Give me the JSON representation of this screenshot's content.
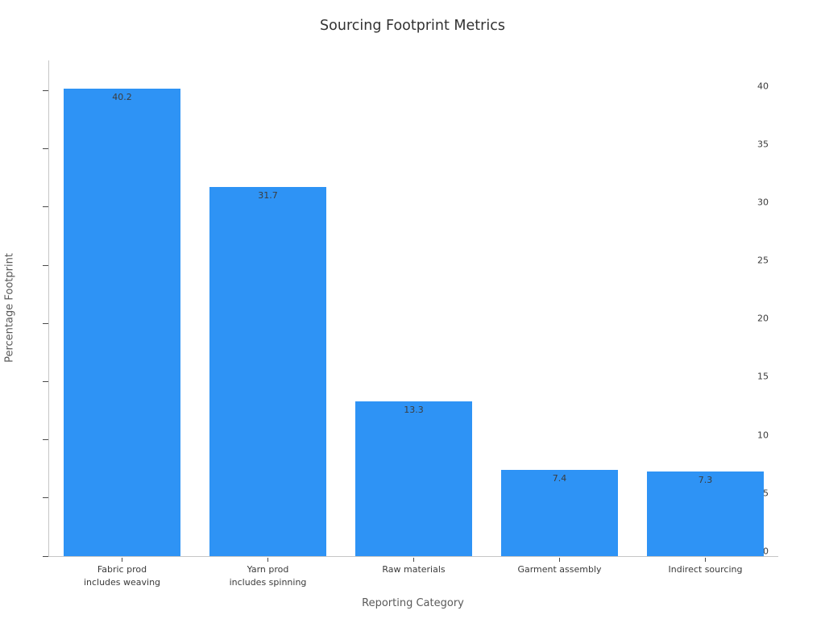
{
  "chart_data": {
    "type": "bar",
    "title": "Sourcing Footprint Metrics",
    "xlabel": "Reporting Category",
    "ylabel": "Percentage Footprint",
    "categories": [
      "Fabric prod\nincludes weaving",
      "Yarn prod\nincludes spinning",
      "Raw materials",
      "Garment assembly",
      "Indirect sourcing"
    ],
    "values": [
      40.2,
      31.7,
      13.3,
      7.4,
      7.3
    ],
    "value_labels": [
      "40.2",
      "31.7",
      "13.3",
      "7.4",
      "7.3"
    ],
    "yticks": [
      0,
      5,
      10,
      15,
      20,
      25,
      30,
      35,
      40
    ],
    "ylim": [
      0,
      42.6
    ],
    "bar_color": "#2E93F5",
    "bar_width_fraction": 0.8,
    "grid": false,
    "legend": null,
    "background_color": "#ffffff"
  }
}
